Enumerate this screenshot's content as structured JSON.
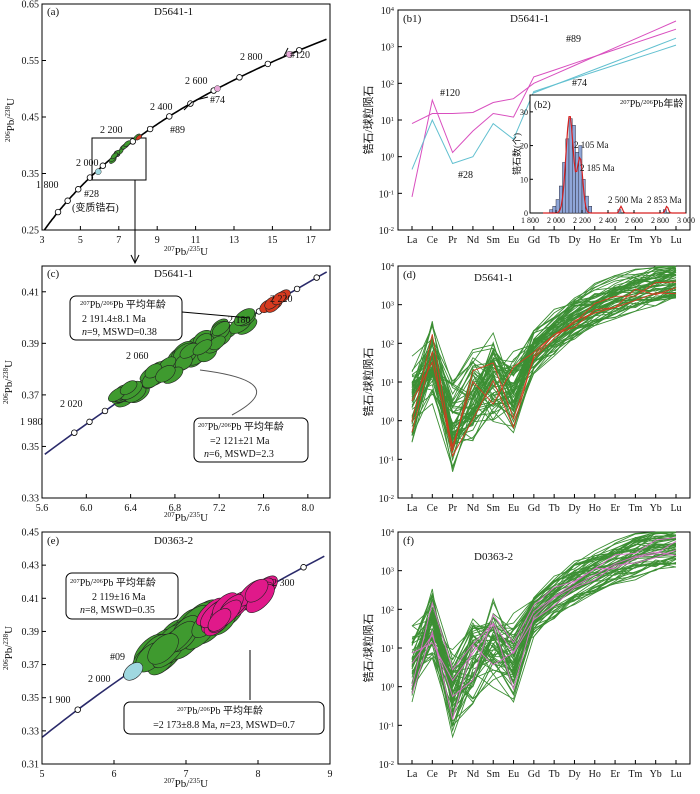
{
  "figure": {
    "panels": [
      {
        "id": "a",
        "type": "scatter",
        "panel_label": "(a)",
        "title": "D5641-1",
        "xlabel_main": "Pb/",
        "xlabel_sup1": "207",
        "xlabel_sup2": "235",
        "xlabel_tail": "U",
        "ylabel_sup1": "206",
        "ylabel_main": "Pb/",
        "ylabel_sup2": "238",
        "ylabel_tail": "U",
        "xlim": [
          3,
          18
        ],
        "ylim": [
          0.25,
          0.65
        ],
        "xticks": [
          "3",
          "5",
          "7",
          "9",
          "11",
          "13",
          "15",
          "17"
        ],
        "yticks": [
          "0.25",
          "0.35",
          "0.45",
          "0.55",
          "0.65"
        ],
        "concordia_ages": [
          "1 800",
          "2 000",
          "2 200",
          "2 400",
          "2 600",
          "2 800"
        ],
        "annotations": [
          "#120",
          "#74",
          "#89",
          "#28",
          "(变质锆石)"
        ]
      },
      {
        "id": "b1",
        "type": "line",
        "panel_label": "(b1)",
        "title": "D5641-1",
        "ylabel": "锆石/球粒陨石",
        "categories": [
          "La",
          "Ce",
          "Pr",
          "Nd",
          "Sm",
          "Eu",
          "Gd",
          "Tb",
          "Dy",
          "Ho",
          "Er",
          "Tm",
          "Yb",
          "Lu"
        ],
        "yticks": [
          "10",
          "10",
          "10",
          "10",
          "10",
          "10",
          "10"
        ],
        "ytick_exponents": [
          "-2",
          "-1",
          "0",
          "1",
          "2",
          "3",
          "4"
        ],
        "ylim_log10": [
          -2,
          4
        ],
        "annotations": [
          "#120",
          "#28",
          "#89",
          "#74"
        ],
        "series": [
          {
            "name": "#120",
            "color": "#d94fbf",
            "values": [
              8,
              15,
              15,
              16,
              30,
              38,
              100,
              null,
              null,
              null,
              null,
              null,
              null,
              5000
            ]
          },
          {
            "name": "#89",
            "color": "#d94fbf",
            "values": [
              0.08,
              35,
              1.3,
              5,
              15,
              12,
              150,
              null,
              null,
              null,
              null,
              null,
              null,
              3000
            ]
          },
          {
            "name": "#28",
            "color": "#62c0d0",
            "values": [
              0.45,
              10,
              0.65,
              1,
              8,
              3,
              60,
              null,
              null,
              null,
              null,
              null,
              null,
              1100
            ]
          },
          {
            "name": "#74",
            "color": "#62c0d0",
            "values": [
              null,
              null,
              null,
              null,
              null,
              null,
              55,
              null,
              null,
              null,
              null,
              null,
              null,
              1700
            ]
          }
        ],
        "inset": {
          "panel_label": "(b2)",
          "title_sup": "207",
          "title_mid": "Pb/",
          "title_sup2": "206",
          "title_tail": "Pb年龄",
          "ylabel": "锆石数(个)",
          "xticks": [
            "1 800",
            "2 000",
            "2 200",
            "2 400",
            "2 600",
            "2 800",
            "3 000"
          ],
          "yticks": [
            "0",
            "10",
            "20",
            "30"
          ],
          "peak_labels": [
            "2 105 Ma",
            "2 185 Ma",
            "2 500 Ma",
            "2 853 Ma"
          ],
          "bins": [
            1950,
            1975,
            2000,
            2025,
            2050,
            2075,
            2100,
            2125,
            2150,
            2175,
            2200,
            2225,
            2250,
            2475,
            2825
          ],
          "counts": [
            1,
            2,
            4,
            8,
            15,
            22,
            28,
            26,
            18,
            20,
            10,
            5,
            2,
            1,
            1
          ]
        }
      },
      {
        "id": "c",
        "type": "scatter",
        "panel_label": "(c)",
        "title": "D5641-1",
        "xlim": [
          5.6,
          8.2
        ],
        "ylim": [
          0.33,
          0.42
        ],
        "xticks": [
          "5.6",
          "6.0",
          "6.4",
          "6.8",
          "7.2",
          "7.6",
          "8.0"
        ],
        "yticks": [
          "0.33",
          "0.35",
          "0.37",
          "0.39",
          "0.41"
        ],
        "concordia_ages": [
          "1 980",
          "2 020",
          "2 060",
          "2 180",
          "2 220"
        ],
        "box1": {
          "sup": "207",
          "mid": "Pb/",
          "sup2": "206",
          "tail": "Pb 平均年龄",
          "line2": "2 191.4±8.1 Ma",
          "line3_n": "n",
          "line3": "=9, MSWD=0.38"
        },
        "box2": {
          "sup": "207",
          "mid": "Pb/",
          "sup2": "206",
          "tail": "Pb 平均年龄",
          "line2": "=2 121±21 Ma",
          "line3_n": "n",
          "line3": "=6, MSWD=2.3"
        }
      },
      {
        "id": "d",
        "type": "line",
        "panel_label": "(d)",
        "title": "D5641-1",
        "ylabel": "锆石/球粒陨石",
        "categories": [
          "La",
          "Ce",
          "Pr",
          "Nd",
          "Sm",
          "Eu",
          "Gd",
          "Tb",
          "Dy",
          "Ho",
          "Er",
          "Tm",
          "Yb",
          "Lu"
        ],
        "yticks": [
          "10",
          "10",
          "10",
          "10",
          "10",
          "10",
          "10"
        ],
        "ytick_exponents": [
          "-2",
          "-1",
          "0",
          "1",
          "2",
          "3",
          "4"
        ],
        "ylim_log10": [
          -2,
          4
        ]
      },
      {
        "id": "e",
        "type": "scatter",
        "panel_label": "(e)",
        "title": "D0363-2",
        "xlim": [
          5,
          9
        ],
        "ylim": [
          0.31,
          0.45
        ],
        "xticks": [
          "5",
          "6",
          "7",
          "8",
          "9"
        ],
        "yticks": [
          "0.31",
          "0.33",
          "0.35",
          "0.37",
          "0.39",
          "0.41",
          "0.43",
          "0.45"
        ],
        "concordia_ages": [
          "1 900",
          "2 000",
          "2 300"
        ],
        "annotations": [
          "#09"
        ],
        "box1": {
          "sup": "207",
          "mid": "Pb/",
          "sup2": "206",
          "tail": "Pb 平均年龄",
          "line2": "2 119±16 Ma",
          "line3_n": "n",
          "line3": "=8, MSWD=0.35"
        },
        "box2": {
          "sup": "207",
          "mid": "Pb/",
          "sup2": "206",
          "tail": "Pb 平均年龄",
          "line2": "=2 173±8.8 Ma, ",
          "line3_n": "n",
          "line3": "=23, MSWD=0.7"
        }
      },
      {
        "id": "f",
        "type": "line",
        "panel_label": "(f)",
        "title": "D0363-2",
        "ylabel": "锆石/球粒陨石",
        "categories": [
          "La",
          "Ce",
          "Pr",
          "Nd",
          "Sm",
          "Eu",
          "Gd",
          "Tb",
          "Dy",
          "Ho",
          "Er",
          "Tm",
          "Yb",
          "Lu"
        ],
        "yticks": [
          "10",
          "10",
          "10",
          "10",
          "10",
          "10",
          "10"
        ],
        "ytick_exponents": [
          "-2",
          "-1",
          "0",
          "1",
          "2",
          "3",
          "4"
        ],
        "ylim_log10": [
          -2,
          4
        ]
      }
    ],
    "colors": {
      "green": "#3f9a2f",
      "green_line": "#3c8f34",
      "red": "#d63a1f",
      "magenta": "#e0198a",
      "cyan": "#9fd8e0",
      "pink_line": "#d56fc6"
    }
  },
  "chart_data": [
    {
      "type": "scatter",
      "title": "D5641-1",
      "panel": "(a)",
      "xlim": [
        3,
        18
      ],
      "ylim": [
        0.25,
        0.65
      ]
    },
    {
      "type": "line",
      "title": "D5641-1",
      "panel": "(b1)",
      "categories": [
        "La",
        "Ce",
        "Pr",
        "Nd",
        "Sm",
        "Eu",
        "Gd",
        "Tb",
        "Dy",
        "Ho",
        "Er",
        "Tm",
        "Yb",
        "Lu"
      ],
      "ylabel": "锆石/球粒陨石"
    },
    {
      "type": "bar",
      "panel": "(b2)",
      "ylabel": "锆石数(个)",
      "xlim": [
        1800,
        3000
      ],
      "ylim": [
        0,
        35
      ]
    },
    {
      "type": "scatter",
      "title": "D5641-1",
      "panel": "(c)",
      "xlim": [
        5.6,
        8.2
      ],
      "ylim": [
        0.33,
        0.42
      ]
    },
    {
      "type": "line",
      "title": "D5641-1",
      "panel": "(d)",
      "categories": [
        "La",
        "Ce",
        "Pr",
        "Nd",
        "Sm",
        "Eu",
        "Gd",
        "Tb",
        "Dy",
        "Ho",
        "Er",
        "Tm",
        "Yb",
        "Lu"
      ],
      "ylabel": "锆石/球粒陨石"
    },
    {
      "type": "scatter",
      "title": "D0363-2",
      "panel": "(e)",
      "xlim": [
        5,
        9
      ],
      "ylim": [
        0.31,
        0.45
      ]
    },
    {
      "type": "line",
      "title": "D0363-2",
      "panel": "(f)",
      "categories": [
        "La",
        "Ce",
        "Pr",
        "Nd",
        "Sm",
        "Eu",
        "Gd",
        "Tb",
        "Dy",
        "Ho",
        "Er",
        "Tm",
        "Yb",
        "Lu"
      ],
      "ylabel": "锆石/球粒陨石"
    }
  ]
}
